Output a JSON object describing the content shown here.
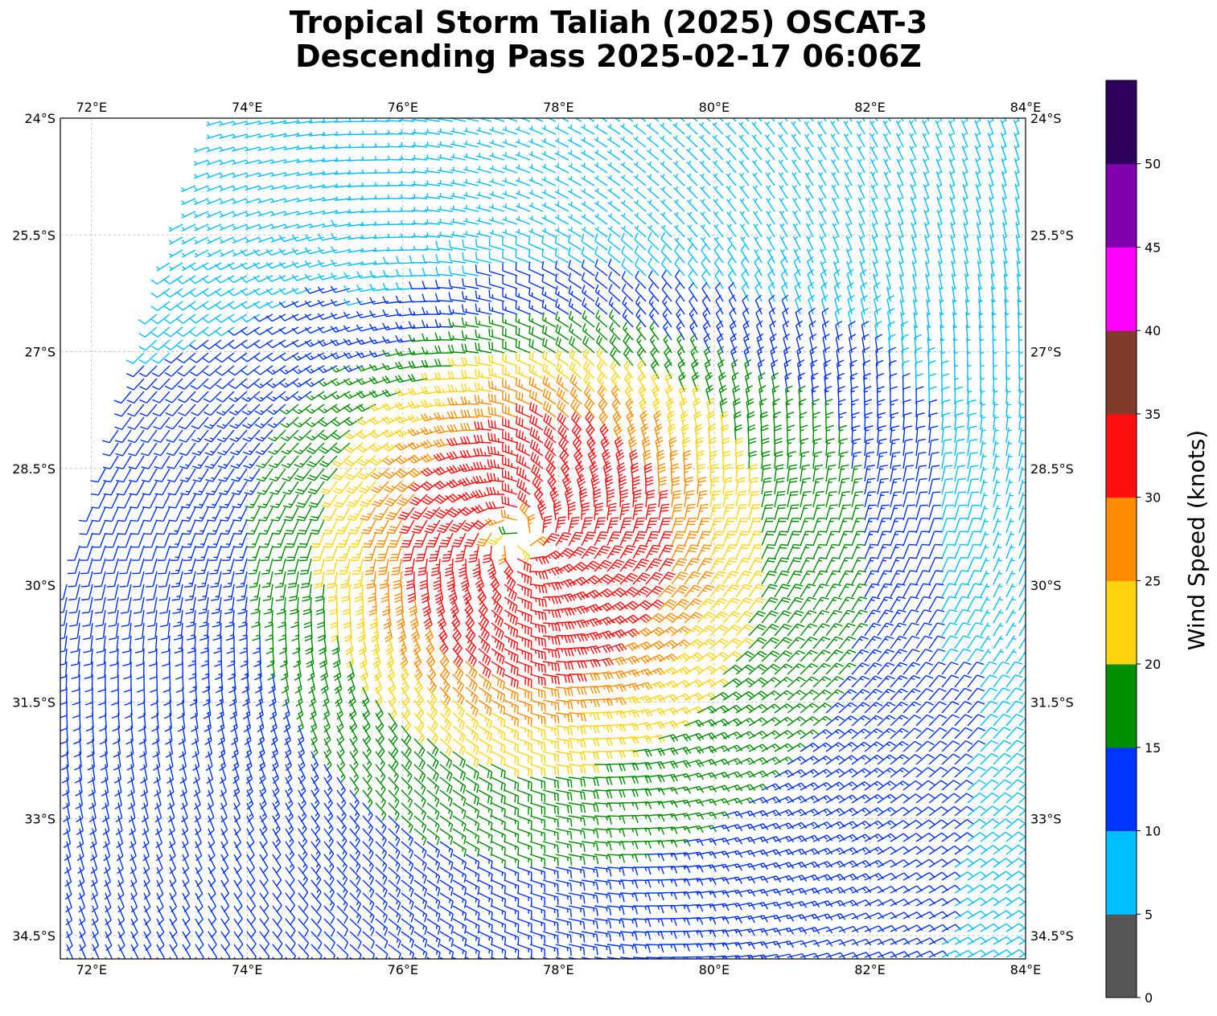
{
  "title_line1": "Tropical Storm Taliah (2025) OSCAT-3",
  "title_line2": "Descending Pass 2025-02-17 06:06Z",
  "map": {
    "lon_range": [
      71.6,
      84.0
    ],
    "lat_range": [
      -24.0,
      -34.8
    ],
    "lon_ticks": [
      {
        "value": 72,
        "label": "72°E"
      },
      {
        "value": 74,
        "label": "74°E"
      },
      {
        "value": 76,
        "label": "76°E"
      },
      {
        "value": 78,
        "label": "78°E"
      },
      {
        "value": 80,
        "label": "80°E"
      },
      {
        "value": 82,
        "label": "82°E"
      },
      {
        "value": 84,
        "label": "84°E"
      }
    ],
    "lat_ticks": [
      {
        "value": -24.0,
        "label": "24°S"
      },
      {
        "value": -25.5,
        "label": "25.5°S"
      },
      {
        "value": -27.0,
        "label": "27°S"
      },
      {
        "value": -28.5,
        "label": "28.5°S"
      },
      {
        "value": -30.0,
        "label": "30°S"
      },
      {
        "value": -31.5,
        "label": "31.5°S"
      },
      {
        "value": -33.0,
        "label": "33°S"
      },
      {
        "value": -34.5,
        "label": "34.5°S"
      }
    ],
    "gridlines": true,
    "storm_center": {
      "lon": 77.5,
      "lat": -29.4
    },
    "barb_field": "cyclonic wind barbs, strongest (25-35 kt) south-east of center, weaker (10-20 kt) to the north and edges"
  },
  "colorbar": {
    "label": "Wind Speed (knots)",
    "levels": [
      {
        "from": 0,
        "to": 5,
        "color": "#555555"
      },
      {
        "from": 5,
        "to": 10,
        "color": "#00bfff"
      },
      {
        "from": 10,
        "to": 15,
        "color": "#0033ff"
      },
      {
        "from": 15,
        "to": 20,
        "color": "#008f00"
      },
      {
        "from": 20,
        "to": 25,
        "color": "#ffd30f"
      },
      {
        "from": 25,
        "to": 30,
        "color": "#ff8c00"
      },
      {
        "from": 30,
        "to": 35,
        "color": "#ff0e0e"
      },
      {
        "from": 35,
        "to": 40,
        "color": "#803c28"
      },
      {
        "from": 40,
        "to": 45,
        "color": "#ff00ff"
      },
      {
        "from": 45,
        "to": 50,
        "color": "#8000b0"
      },
      {
        "from": 50,
        "to": 55,
        "color": "#2c005c"
      }
    ],
    "tick_labels": [
      "0",
      "5",
      "10",
      "15",
      "20",
      "25",
      "30",
      "35",
      "40",
      "45",
      "50"
    ]
  }
}
